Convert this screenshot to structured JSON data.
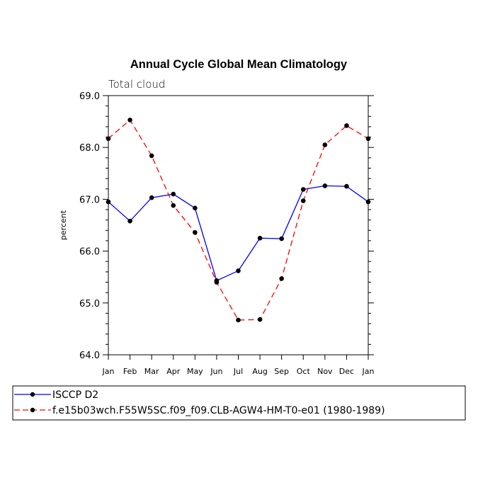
{
  "chart_data": {
    "type": "line",
    "title": "Annual Cycle Global Mean Climatology",
    "subtitle": "Total cloud",
    "xlabel": "",
    "ylabel": "percent",
    "categories": [
      "Jan",
      "Feb",
      "Mar",
      "Apr",
      "May",
      "Jun",
      "Jul",
      "Aug",
      "Sep",
      "Oct",
      "Nov",
      "Dec",
      "Jan"
    ],
    "ylim": [
      64.0,
      69.0
    ],
    "yticks": [
      "64.0",
      "65.0",
      "66.0",
      "67.0",
      "68.0",
      "69.0"
    ],
    "series": [
      {
        "name": "ISCCP D2",
        "color": "#0000ff",
        "dash": "solid",
        "values": [
          66.95,
          66.58,
          67.03,
          67.1,
          66.83,
          65.43,
          65.62,
          66.25,
          66.24,
          67.19,
          67.26,
          67.25,
          66.95
        ]
      },
      {
        "name": "f.e15b03wch.F55W5SC.f09_f09.CLB-AGW4-HM-T0-e01 (1980-1989)",
        "color": "#ff0000",
        "dash": "dashed",
        "values": [
          68.17,
          68.53,
          67.84,
          66.88,
          66.36,
          65.4,
          64.67,
          64.68,
          65.47,
          66.97,
          68.05,
          68.42,
          68.17
        ]
      }
    ],
    "legend_position": "bottom"
  }
}
